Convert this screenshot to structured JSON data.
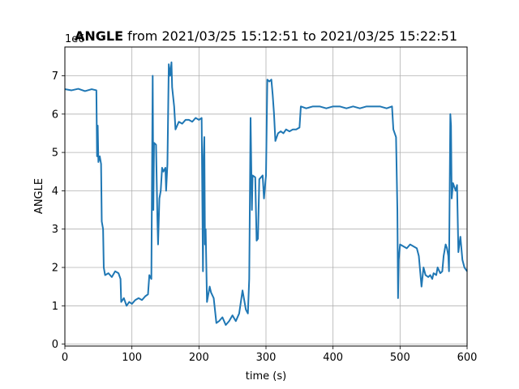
{
  "chart_data": {
    "type": "line",
    "title_bold": "ANGLE",
    "title_rest": " from 2021/03/25 15:12:51 to 2021/03/25 15:22:51",
    "xlabel": "time (s)",
    "ylabel": "ANGLE",
    "y_offset_text": "1e6",
    "xlim": [
      0,
      600
    ],
    "ylim": [
      -0.05,
      7.75
    ],
    "x_ticks": [
      0,
      100,
      200,
      300,
      400,
      500,
      600
    ],
    "y_ticks": [
      0,
      1,
      2,
      3,
      4,
      5,
      6,
      7
    ],
    "grid": true,
    "line_color": "#1f77b4",
    "series": [
      {
        "points": [
          [
            0,
            6.65
          ],
          [
            10,
            6.62
          ],
          [
            20,
            6.66
          ],
          [
            30,
            6.6
          ],
          [
            40,
            6.65
          ],
          [
            47,
            6.62
          ],
          [
            48,
            4.9
          ],
          [
            49,
            5.7
          ],
          [
            50,
            4.75
          ],
          [
            52,
            4.9
          ],
          [
            54,
            4.7
          ],
          [
            55,
            3.2
          ],
          [
            57,
            3.0
          ],
          [
            58,
            2.0
          ],
          [
            60,
            1.8
          ],
          [
            65,
            1.85
          ],
          [
            70,
            1.75
          ],
          [
            75,
            1.9
          ],
          [
            80,
            1.85
          ],
          [
            83,
            1.7
          ],
          [
            84,
            1.1
          ],
          [
            88,
            1.2
          ],
          [
            92,
            1.0
          ],
          [
            96,
            1.1
          ],
          [
            100,
            1.05
          ],
          [
            105,
            1.15
          ],
          [
            110,
            1.2
          ],
          [
            115,
            1.15
          ],
          [
            120,
            1.25
          ],
          [
            124,
            1.3
          ],
          [
            126,
            1.8
          ],
          [
            129,
            1.7
          ],
          [
            131,
            7.0
          ],
          [
            132,
            3.5
          ],
          [
            133,
            5.25
          ],
          [
            136,
            5.2
          ],
          [
            138,
            3.3
          ],
          [
            139,
            2.6
          ],
          [
            141,
            3.8
          ],
          [
            143,
            4.0
          ],
          [
            145,
            4.6
          ],
          [
            147,
            4.5
          ],
          [
            150,
            4.6
          ],
          [
            151,
            4.0
          ],
          [
            153,
            4.7
          ],
          [
            155,
            7.3
          ],
          [
            157,
            7.0
          ],
          [
            159,
            7.35
          ],
          [
            160,
            6.7
          ],
          [
            163,
            6.2
          ],
          [
            165,
            5.6
          ],
          [
            170,
            5.8
          ],
          [
            175,
            5.75
          ],
          [
            180,
            5.85
          ],
          [
            185,
            5.85
          ],
          [
            190,
            5.8
          ],
          [
            195,
            5.9
          ],
          [
            200,
            5.85
          ],
          [
            204,
            5.9
          ],
          [
            206,
            1.9
          ],
          [
            207,
            4.9
          ],
          [
            208,
            5.4
          ],
          [
            209,
            2.6
          ],
          [
            210,
            3.0
          ],
          [
            212,
            1.1
          ],
          [
            214,
            1.3
          ],
          [
            216,
            1.5
          ],
          [
            218,
            1.35
          ],
          [
            222,
            1.2
          ],
          [
            226,
            0.55
          ],
          [
            230,
            0.6
          ],
          [
            235,
            0.7
          ],
          [
            240,
            0.5
          ],
          [
            245,
            0.6
          ],
          [
            250,
            0.75
          ],
          [
            255,
            0.6
          ],
          [
            260,
            0.8
          ],
          [
            265,
            1.4
          ],
          [
            270,
            0.9
          ],
          [
            273,
            0.8
          ],
          [
            275,
            1.7
          ],
          [
            277,
            5.9
          ],
          [
            279,
            3.5
          ],
          [
            280,
            4.4
          ],
          [
            284,
            4.35
          ],
          [
            286,
            2.7
          ],
          [
            288,
            2.75
          ],
          [
            290,
            4.3
          ],
          [
            295,
            4.4
          ],
          [
            297,
            3.8
          ],
          [
            300,
            4.4
          ],
          [
            302,
            6.9
          ],
          [
            305,
            6.85
          ],
          [
            308,
            6.9
          ],
          [
            310,
            6.5
          ],
          [
            312,
            6.0
          ],
          [
            314,
            5.3
          ],
          [
            318,
            5.5
          ],
          [
            322,
            5.55
          ],
          [
            326,
            5.5
          ],
          [
            330,
            5.6
          ],
          [
            335,
            5.55
          ],
          [
            340,
            5.6
          ],
          [
            345,
            5.6
          ],
          [
            350,
            5.65
          ],
          [
            352,
            6.2
          ],
          [
            360,
            6.15
          ],
          [
            370,
            6.2
          ],
          [
            380,
            6.2
          ],
          [
            390,
            6.15
          ],
          [
            400,
            6.2
          ],
          [
            410,
            6.2
          ],
          [
            420,
            6.15
          ],
          [
            430,
            6.2
          ],
          [
            440,
            6.15
          ],
          [
            450,
            6.2
          ],
          [
            460,
            6.2
          ],
          [
            470,
            6.2
          ],
          [
            480,
            6.15
          ],
          [
            488,
            6.2
          ],
          [
            490,
            5.6
          ],
          [
            492,
            5.5
          ],
          [
            494,
            5.4
          ],
          [
            496,
            3.5
          ],
          [
            497,
            1.2
          ],
          [
            498,
            2.2
          ],
          [
            500,
            2.6
          ],
          [
            505,
            2.55
          ],
          [
            510,
            2.5
          ],
          [
            515,
            2.6
          ],
          [
            520,
            2.55
          ],
          [
            525,
            2.5
          ],
          [
            528,
            2.3
          ],
          [
            532,
            1.5
          ],
          [
            535,
            2.0
          ],
          [
            538,
            1.8
          ],
          [
            542,
            1.75
          ],
          [
            545,
            1.8
          ],
          [
            548,
            1.7
          ],
          [
            550,
            1.85
          ],
          [
            554,
            1.8
          ],
          [
            556,
            2.0
          ],
          [
            560,
            1.85
          ],
          [
            563,
            1.9
          ],
          [
            565,
            2.3
          ],
          [
            568,
            2.6
          ],
          [
            570,
            2.5
          ],
          [
            572,
            2.3
          ],
          [
            573,
            1.9
          ],
          [
            575,
            6.0
          ],
          [
            576,
            5.7
          ],
          [
            577,
            3.8
          ],
          [
            579,
            4.2
          ],
          [
            581,
            4.1
          ],
          [
            583,
            4.0
          ],
          [
            585,
            4.15
          ],
          [
            587,
            2.4
          ],
          [
            590,
            2.8
          ],
          [
            593,
            2.2
          ],
          [
            596,
            2.0
          ],
          [
            600,
            1.9
          ]
        ]
      }
    ]
  }
}
